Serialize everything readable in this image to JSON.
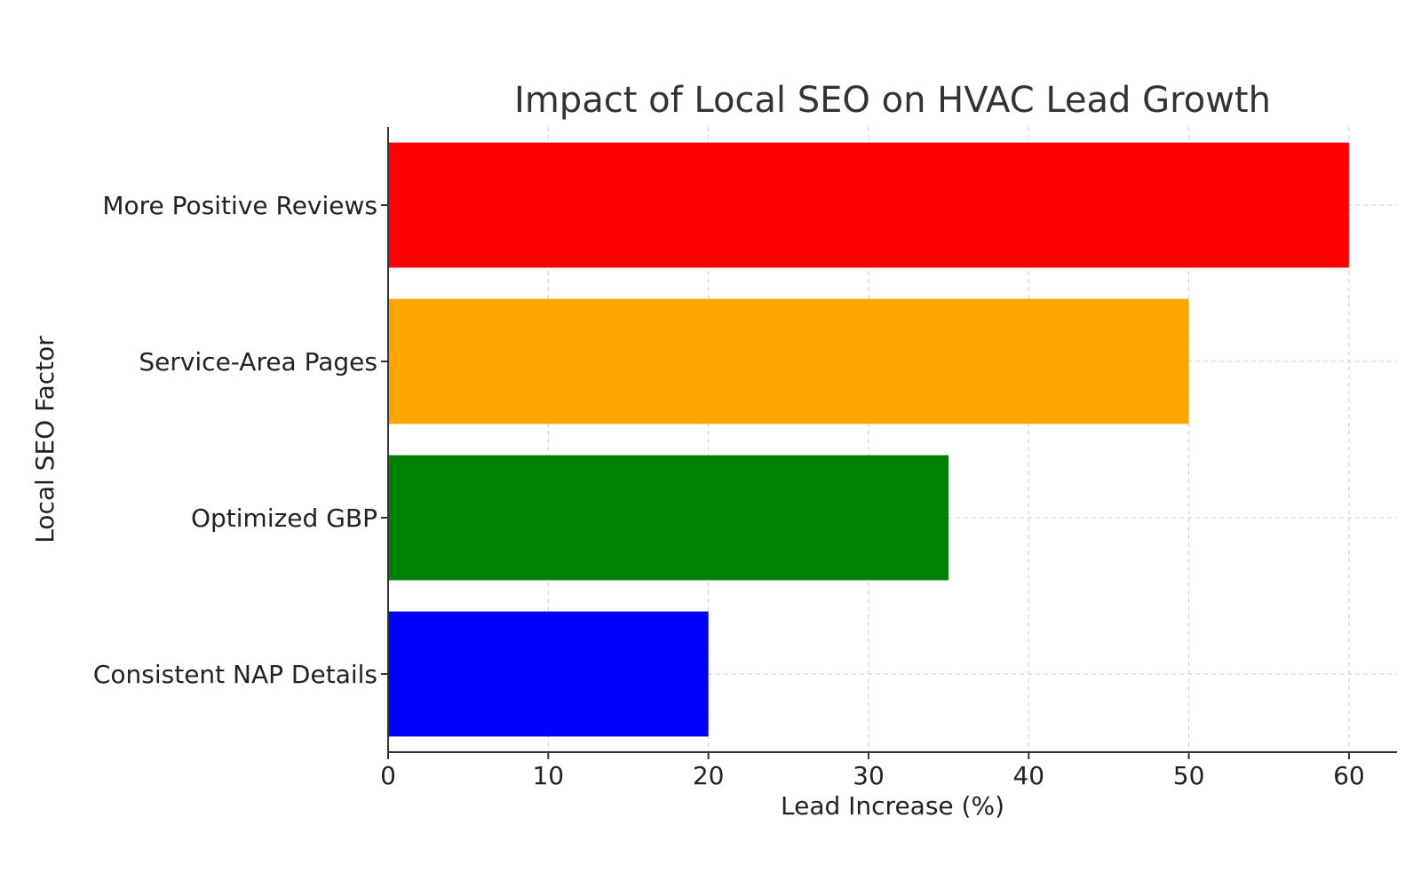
{
  "chart_data": {
    "type": "bar",
    "orientation": "horizontal",
    "title": "Impact of Local SEO on HVAC Lead Growth",
    "xlabel": "Lead Increase (%)",
    "ylabel": "Local SEO Factor",
    "categories": [
      "Consistent NAP Details",
      "Optimized GBP",
      "Service-Area Pages",
      "More Positive Reviews"
    ],
    "values": [
      20,
      35,
      50,
      60
    ],
    "colors": [
      "#0000ff",
      "#008000",
      "#ffa500",
      "#ff0000"
    ],
    "xlim": [
      0,
      63
    ],
    "xticks": [
      0,
      10,
      20,
      30,
      40,
      50,
      60
    ],
    "grid": true,
    "legend": "none"
  }
}
